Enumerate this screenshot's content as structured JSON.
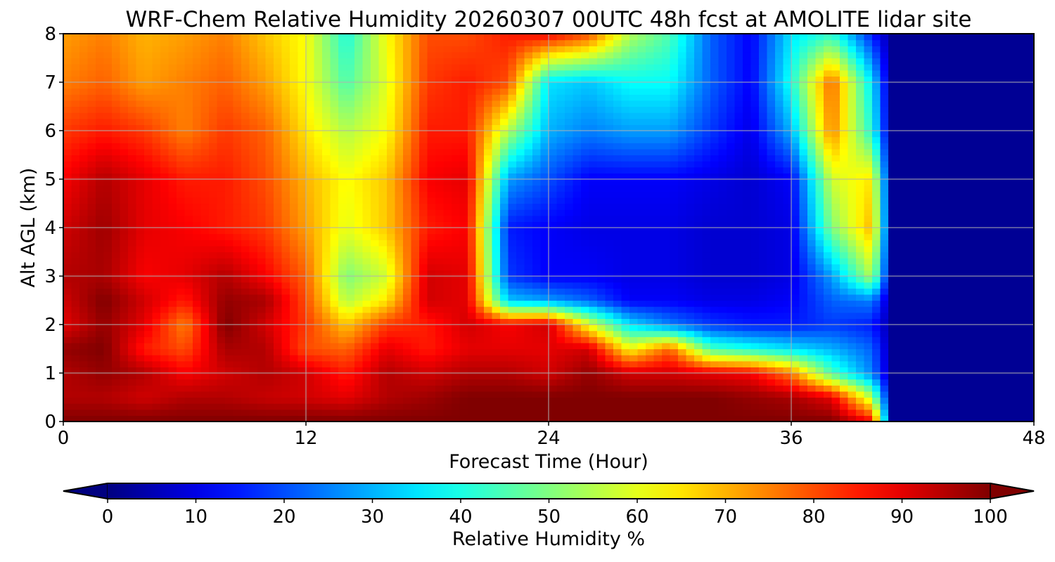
{
  "chart_data": {
    "type": "heatmap",
    "title": "WRF-Chem Relative Humidity 20260307 00UTC 48h fcst at AMOLITE lidar site",
    "xlabel": "Forecast Time (Hour)",
    "ylabel": "Alt AGL (km)",
    "xlim": [
      0,
      48
    ],
    "ylim": [
      0,
      8
    ],
    "xticks": [
      0,
      12,
      24,
      36,
      48
    ],
    "yticks": [
      0,
      1,
      2,
      3,
      4,
      5,
      6,
      7,
      8
    ],
    "xtick_labels": [
      "0",
      "12",
      "24",
      "36",
      "48"
    ],
    "ytick_labels": [
      "0",
      "1",
      "2",
      "3",
      "4",
      "5",
      "6",
      "7",
      "8"
    ],
    "grid": true,
    "colormap": "jet",
    "colorbar": {
      "label": "Relative Humidity %",
      "range": [
        0,
        100
      ],
      "ticks": [
        0,
        10,
        20,
        30,
        40,
        50,
        60,
        70,
        80,
        90,
        100
      ],
      "tick_labels": [
        "0",
        "10",
        "20",
        "30",
        "40",
        "50",
        "60",
        "70",
        "80",
        "90",
        "100"
      ],
      "extend": "both",
      "orientation": "horizontal"
    },
    "x": [
      0,
      2,
      4,
      6,
      8,
      10,
      12,
      14,
      16,
      18,
      20,
      22,
      24,
      26,
      28,
      30,
      32,
      34,
      36,
      38,
      40,
      41,
      42,
      44,
      46,
      48
    ],
    "y": [
      0,
      0.5,
      1,
      1.5,
      2,
      2.5,
      3,
      4,
      5,
      6,
      7,
      8
    ],
    "z": [
      [
        100,
        100,
        100,
        100,
        100,
        100,
        100,
        100,
        100,
        100,
        100,
        100,
        100,
        100,
        100,
        100,
        100,
        100,
        100,
        100,
        88,
        2,
        2,
        2,
        2,
        2
      ],
      [
        95,
        95,
        92,
        95,
        95,
        93,
        92,
        90,
        95,
        97,
        100,
        100,
        100,
        100,
        100,
        100,
        100,
        98,
        96,
        90,
        55,
        2,
        2,
        2,
        2,
        2
      ],
      [
        95,
        98,
        95,
        88,
        92,
        95,
        92,
        85,
        95,
        92,
        95,
        95,
        92,
        98,
        92,
        92,
        90,
        88,
        75,
        45,
        25,
        2,
        2,
        2,
        2,
        2
      ],
      [
        98,
        100,
        85,
        80,
        96,
        95,
        80,
        78,
        90,
        85,
        90,
        90,
        90,
        92,
        62,
        78,
        45,
        40,
        35,
        30,
        22,
        2,
        2,
        2,
        2,
        2
      ],
      [
        90,
        98,
        90,
        75,
        100,
        92,
        82,
        68,
        82,
        85,
        92,
        88,
        92,
        60,
        35,
        25,
        18,
        15,
        15,
        18,
        15,
        2,
        2,
        2,
        2,
        2
      ],
      [
        92,
        100,
        92,
        85,
        98,
        96,
        80,
        55,
        65,
        92,
        90,
        32,
        28,
        22,
        12,
        12,
        10,
        10,
        12,
        22,
        25,
        2,
        2,
        2,
        2,
        2
      ],
      [
        95,
        96,
        88,
        90,
        95,
        88,
        78,
        50,
        58,
        92,
        90,
        18,
        12,
        12,
        10,
        10,
        8,
        8,
        10,
        28,
        55,
        2,
        2,
        2,
        2,
        2
      ],
      [
        92,
        97,
        90,
        88,
        85,
        82,
        72,
        60,
        68,
        85,
        88,
        15,
        12,
        10,
        10,
        10,
        8,
        8,
        10,
        50,
        70,
        2,
        2,
        2,
        2,
        2
      ],
      [
        88,
        95,
        90,
        85,
        85,
        80,
        70,
        62,
        68,
        88,
        90,
        28,
        20,
        12,
        12,
        12,
        10,
        8,
        12,
        58,
        65,
        2,
        2,
        2,
        2,
        2
      ],
      [
        82,
        85,
        82,
        75,
        82,
        78,
        65,
        55,
        62,
        85,
        85,
        55,
        30,
        25,
        28,
        28,
        18,
        10,
        30,
        75,
        40,
        2,
        2,
        2,
        2,
        2
      ],
      [
        75,
        78,
        72,
        75,
        78,
        72,
        62,
        45,
        60,
        82,
        85,
        80,
        35,
        32,
        38,
        38,
        22,
        12,
        40,
        78,
        35,
        2,
        2,
        2,
        2,
        2
      ],
      [
        72,
        75,
        70,
        72,
        75,
        68,
        62,
        40,
        62,
        80,
        80,
        85,
        88,
        80,
        55,
        45,
        22,
        12,
        35,
        42,
        15,
        2,
        2,
        2,
        2,
        2
      ]
    ]
  }
}
